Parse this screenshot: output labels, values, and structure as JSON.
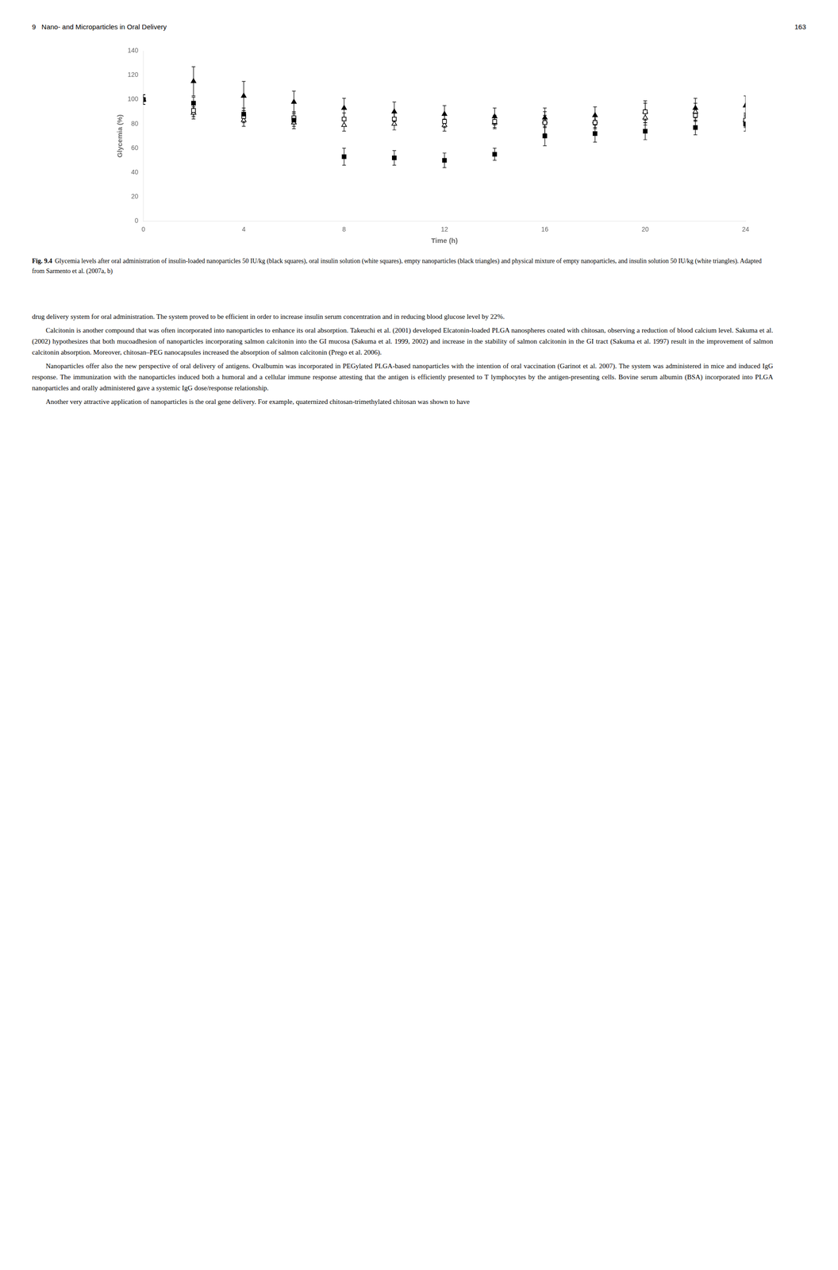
{
  "page_header_left": "9   Nano- and Microparticles in Oral Delivery",
  "page_header_right": "163",
  "caption_label": "Fig. 9.4",
  "caption": "Glycemia levels after oral administration of insulin-loaded nanoparticles 50 IU/kg (black squares), oral insulin solution (white squares), empty nanoparticles (black triangles) and physical mixture of empty nanoparticles, and insulin solution 50 IU/kg (white triangles). Adapted from Sarmento et al. (2007a, b)",
  "body_paragraphs": [
    "drug delivery system for oral administration. The system proved to be efficient in order to increase insulin serum concentration and in reducing blood glucose level by 22%.",
    "Calcitonin is another compound that was often incorporated into nanoparticles to enhance its oral absorption. Takeuchi et al. (2001) developed Elcatonin-loaded PLGA nanospheres coated with chitosan, observing a reduction of blood calcium level. Sakuma et al. (2002) hypothesizes that both mucoadhesion of nanoparticles incorporating salmon calcitonin into the GI mucosa (Sakuma et al. 1999, 2002) and increase in the stability of salmon calcitonin in the GI tract (Sakuma et al. 1997) result in the improvement of salmon calcitonin absorption. Moreover, chitosan–PEG nanocapsules increased the absorption of salmon calcitonin (Prego et al. 2006).",
    "Nanoparticles offer also the new perspective of oral delivery of antigens. Ovalbumin was incorporated in PEGylated PLGA-based nanoparticles with the intention of oral vaccination (Garinot et al. 2007). The system was administered in mice and induced IgG response. The immunization with the nanoparticles induced both a humoral and a cellular immune response attesting that the antigen is efficiently presented to T lymphocytes by the antigen-presenting cells. Bovine serum albumin (BSA) incorporated into PLGA nanoparticles and orally administered gave a systemic IgG dose/response relationship.",
    "Another very attractive application of nanoparticles is the oral gene delivery. For example, quaternized chitosan-trimethylated chitosan was shown to have"
  ],
  "chart_data": {
    "type": "scatter",
    "xlabel": "Time (h)",
    "ylabel": "Glycemia (%)",
    "xlim": [
      0,
      24
    ],
    "ylim": [
      0,
      140
    ],
    "xticks": [
      0,
      4,
      8,
      12,
      16,
      20,
      24
    ],
    "yticks": [
      0,
      20,
      40,
      60,
      80,
      100,
      120,
      140
    ],
    "grid": false,
    "x": [
      0,
      2,
      4,
      6,
      8,
      10,
      12,
      14,
      16,
      18,
      20,
      22,
      24
    ],
    "series": [
      {
        "color": "#000000",
        "marker": "square",
        "values": [
          100,
          97,
          88,
          83,
          53,
          52,
          50,
          55,
          70,
          72,
          74,
          77,
          80
        ],
        "yerr": [
          4,
          5,
          5,
          5,
          7,
          6,
          6,
          5,
          8,
          7,
          7,
          6,
          6
        ]
      },
      {
        "color": "#ffffff",
        "marker": "square",
        "values": [
          100,
          91,
          86,
          85,
          84,
          84,
          82,
          82,
          81,
          81,
          90,
          87,
          83
        ],
        "yerr": [
          4,
          5,
          5,
          5,
          5,
          5,
          5,
          5,
          9,
          5,
          9,
          5,
          5
        ]
      },
      {
        "color": "#000000",
        "marker": "triangle",
        "values": [
          100,
          115,
          103,
          98,
          93,
          90,
          88,
          86,
          85,
          87,
          90,
          93,
          95
        ],
        "yerr": [
          4,
          12,
          12,
          9,
          8,
          8,
          7,
          7,
          8,
          7,
          7,
          8,
          8
        ]
      },
      {
        "color": "#ffffff",
        "marker": "triangle",
        "values": [
          100,
          89,
          83,
          81,
          79,
          80,
          79,
          81,
          82,
          82,
          85,
          90,
          83
        ],
        "yerr": [
          4,
          5,
          5,
          5,
          5,
          5,
          5,
          5,
          5,
          5,
          6,
          7,
          6
        ]
      }
    ]
  }
}
